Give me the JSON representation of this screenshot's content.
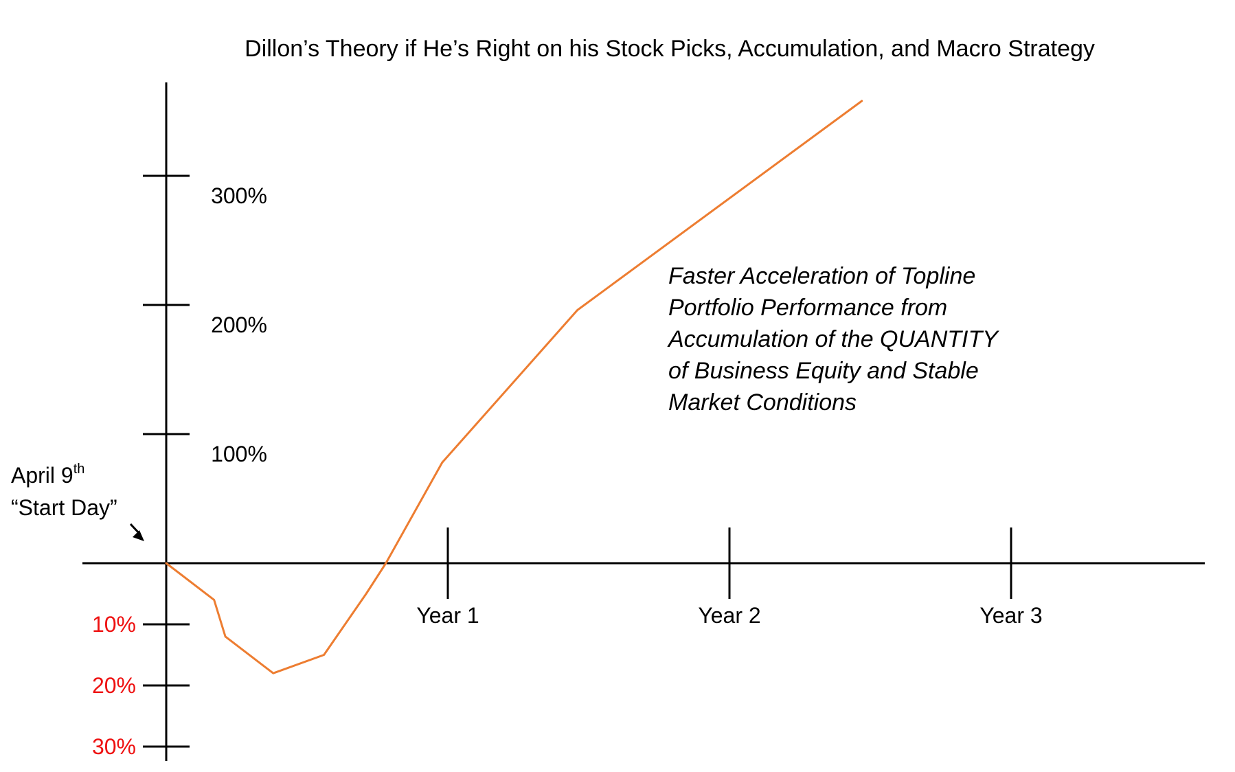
{
  "chart_data": {
    "type": "line",
    "title": "Dillon’s Theory if He’s Right on his Stock Picks, Accumulation, and Macro Strategy",
    "xlabel": "",
    "ylabel": "",
    "x_ticks": [
      {
        "label": "Year 1",
        "value": 1
      },
      {
        "label": "Year 2",
        "value": 2
      },
      {
        "label": "Year 3",
        "value": 3
      }
    ],
    "y_ticks_positive": [
      {
        "label": "100%",
        "value": 100
      },
      {
        "label": "200%",
        "value": 200
      },
      {
        "label": "300%",
        "value": 300
      }
    ],
    "y_ticks_negative": [
      {
        "label": "10%",
        "value": -10
      },
      {
        "label": "20%",
        "value": -20
      },
      {
        "label": "30%",
        "value": -30
      }
    ],
    "ylim": [
      -33,
      360
    ],
    "xlim": [
      -0.3,
      3.7
    ],
    "grid": false,
    "series": [
      {
        "color": "#ED7D31",
        "points": [
          {
            "x": 0.0,
            "y": 0
          },
          {
            "x": 0.17,
            "y": -6
          },
          {
            "x": 0.21,
            "y": -12
          },
          {
            "x": 0.38,
            "y": -18
          },
          {
            "x": 0.56,
            "y": -15
          },
          {
            "x": 0.71,
            "y": -5
          },
          {
            "x": 0.78,
            "y": 0
          },
          {
            "x": 0.98,
            "y": 78
          },
          {
            "x": 1.46,
            "y": 196
          },
          {
            "x": 2.47,
            "y": 358
          }
        ]
      }
    ],
    "annotation": {
      "lines": [
        "Faster Acceleration of Topline",
        "Portfolio Performance from",
        "Accumulation of the QUANTITY",
        "of Business Equity and Stable",
        "Market Conditions"
      ]
    },
    "start_label": {
      "line1": "April 9",
      "line1_sup": "th",
      "line2": "“Start Day”"
    },
    "colors": {
      "axis": "#000000",
      "negative_tick_labels": "#EE1111",
      "series": "#ED7D31"
    }
  }
}
